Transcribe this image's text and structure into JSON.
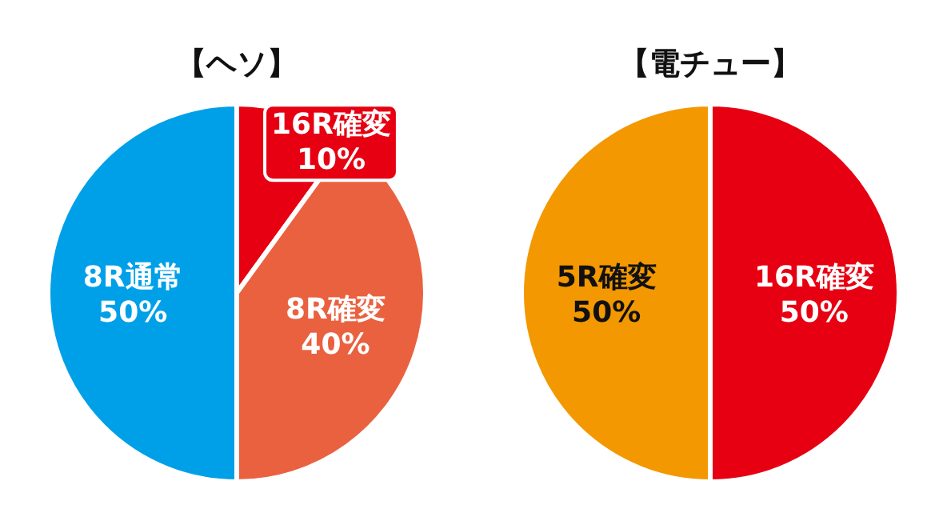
{
  "chart_data": [
    {
      "type": "pie",
      "title": "【ヘソ】",
      "categories": [
        "16R確変",
        "8R確変",
        "8R通常"
      ],
      "values": [
        10,
        40,
        50
      ],
      "colors": [
        "#e60012",
        "#ea6140",
        "#00a0e9"
      ],
      "value_labels": [
        "10%",
        "40%",
        "50%"
      ]
    },
    {
      "type": "pie",
      "title": "【電チュー】",
      "categories": [
        "16R確変",
        "5R確変"
      ],
      "values": [
        50,
        50
      ],
      "colors": [
        "#e60012",
        "#f39800"
      ],
      "value_labels": [
        "50%",
        "50%"
      ]
    }
  ]
}
